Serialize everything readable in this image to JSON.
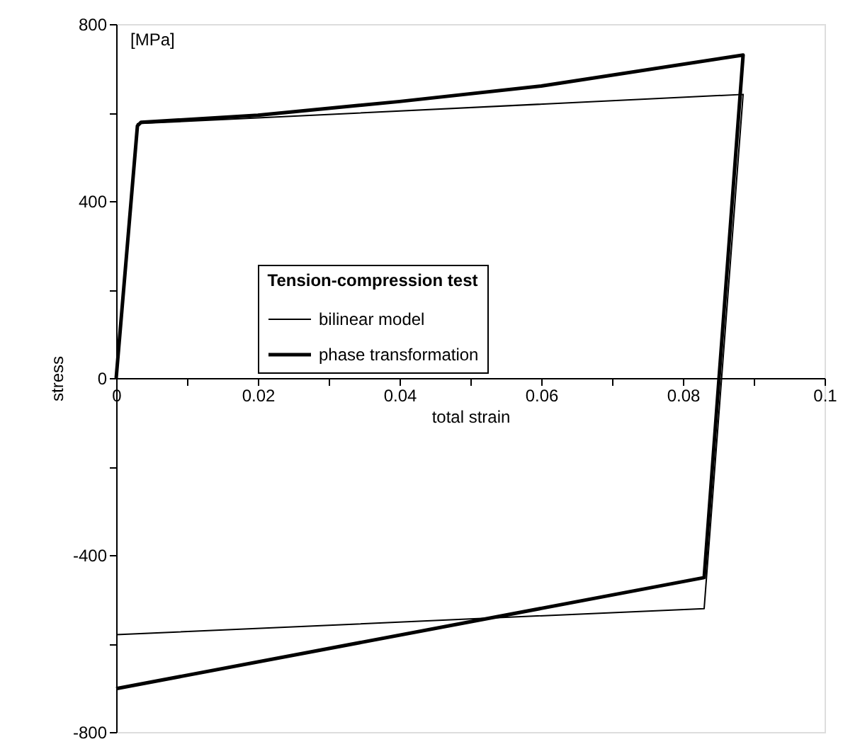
{
  "chart_data": {
    "type": "line",
    "xlabel": "total strain",
    "ylabel": "stress",
    "legend_title": "Tension-compression test",
    "annotations": [
      "[MPa]"
    ],
    "xlim": [
      0,
      0.1
    ],
    "ylim": [
      -800,
      800
    ],
    "xticks": [
      0,
      {
        "value": 0.01,
        "label": null
      },
      0.02,
      {
        "value": 0.03,
        "label": null
      },
      0.04,
      {
        "value": 0.05,
        "label": null
      },
      0.06,
      {
        "value": 0.07,
        "label": null
      },
      0.08,
      {
        "value": 0.09,
        "label": null
      },
      0.1
    ],
    "yticks": [
      -800,
      {
        "value": -600,
        "label": null
      },
      -400,
      {
        "value": -200,
        "label": null
      },
      0,
      {
        "value": 200,
        "label": null
      },
      400,
      {
        "value": 600,
        "label": null
      },
      800
    ],
    "grid": false,
    "legend": "top",
    "marker": "none",
    "line_style": "solid",
    "series": [
      {
        "name": "bilinear model",
        "color": "#000000",
        "x": [
          0,
          0.003,
          0.0885,
          0.083,
          0
        ],
        "values": [
          0,
          575,
          641,
          -521,
          -580
        ]
      },
      {
        "name": "phase transformation",
        "color": "#000000",
        "x": [
          0,
          0.003,
          0.0035,
          0.02,
          0.04,
          0.06,
          0.0885,
          0.083,
          0
        ],
        "values": [
          0,
          570,
          578,
          594,
          625,
          660,
          730,
          -451,
          -702
        ]
      }
    ]
  }
}
